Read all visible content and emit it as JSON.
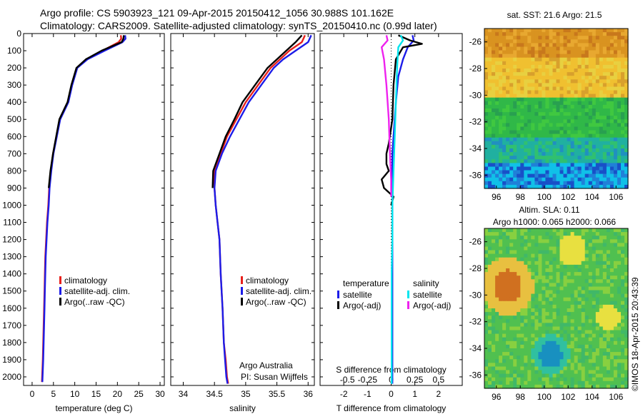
{
  "title_line1": "Argo profile: CS 5903923_121 09-Apr-2015 20150412_1056 30.988S 101.162E",
  "title_line2": "Climatology: CARS2009. Satellite-adjusted climatology: synTS_20150410.nc (0.99d later)",
  "sst_title": "sat. SST: 21.6 Argo: 21.5",
  "sla_title1": "Altim. SLA: 0.11",
  "sla_title2": "Argo h1000: 0.065 h2000: 0.066",
  "credit": "Argo Australia",
  "pi": "PI: Susan Wijffels",
  "watermark": "©IMOS 18-Apr-2015 20:43:39",
  "chart_data": [
    {
      "type": "line",
      "panel": "temperature",
      "xlabel": "temperature (deg C)",
      "xlim": [
        -2,
        31
      ],
      "ylim": [
        0,
        2050
      ],
      "y_reversed": true,
      "xticks": [
        0,
        5,
        10,
        15,
        20,
        25,
        30
      ],
      "yticks": [
        0,
        100,
        200,
        300,
        400,
        500,
        600,
        700,
        800,
        900,
        1000,
        1100,
        1200,
        1300,
        1400,
        1500,
        1600,
        1700,
        1800,
        1900,
        2000
      ],
      "legend": [
        "climatology",
        "satellite-adj. clim.",
        "Argo(..raw -QC)"
      ],
      "series": [
        {
          "name": "climatology",
          "color": "#e8201c",
          "x": [
            20.8,
            20.9,
            20.3,
            16.5,
            12.8,
            10.5,
            9.3,
            8.4,
            6.5,
            4.9,
            4.4,
            4.0,
            3.8,
            3.5,
            3.3,
            3.1,
            3.0,
            2.9,
            2.8,
            2.7,
            2.6,
            2.5,
            2.3
          ],
          "y": [
            10,
            30,
            50,
            100,
            150,
            200,
            300,
            400,
            500,
            700,
            800,
            900,
            1000,
            1100,
            1200,
            1300,
            1400,
            1500,
            1600,
            1700,
            1800,
            1900,
            2030
          ]
        },
        {
          "name": "satellite-adj. clim.",
          "color": "#1c1ce8",
          "x": [
            21.8,
            21.9,
            21.2,
            17.0,
            13.0,
            10.6,
            9.4,
            8.5,
            6.6,
            5.0,
            4.5,
            4.1,
            3.9,
            3.6,
            3.4,
            3.2,
            3.1,
            3.0,
            2.9,
            2.8,
            2.7,
            2.6,
            2.4
          ],
          "y": [
            10,
            30,
            50,
            100,
            150,
            200,
            300,
            400,
            500,
            700,
            800,
            900,
            1000,
            1100,
            1200,
            1300,
            1400,
            1500,
            1600,
            1700,
            1800,
            1900,
            2030
          ]
        },
        {
          "name": "Argo(..raw -QC)",
          "color": "#000000",
          "x": [
            21.5,
            21.4,
            21.0,
            16.3,
            12.6,
            10.4,
            9.2,
            8.3,
            6.4,
            4.9,
            4.3,
            3.9
          ],
          "y": [
            10,
            30,
            50,
            100,
            150,
            200,
            300,
            400,
            500,
            700,
            800,
            900
          ]
        }
      ]
    },
    {
      "type": "line",
      "panel": "salinity",
      "xlabel": "salinity",
      "xlim": [
        33.8,
        36.1
      ],
      "ylim": [
        0,
        2050
      ],
      "y_reversed": true,
      "xticks": [
        34,
        34.5,
        35,
        35.5,
        36
      ],
      "legend": [
        "climatology",
        "satellite-adj. clim.",
        "Argo(..raw -QC)"
      ],
      "series": [
        {
          "name": "climatology",
          "color": "#e8201c",
          "x": [
            35.95,
            35.9,
            35.7,
            35.55,
            35.4,
            35.2,
            35.0,
            34.85,
            34.7,
            34.6,
            34.5,
            34.5,
            34.52,
            34.55,
            34.58,
            34.6,
            34.63,
            34.65,
            34.68,
            34.7,
            34.72
          ],
          "y": [
            10,
            50,
            100,
            150,
            200,
            300,
            400,
            500,
            600,
            700,
            800,
            900,
            1000,
            1100,
            1200,
            1400,
            1600,
            1800,
            1900,
            2000,
            2040
          ]
        },
        {
          "name": "satellite-adj. clim.",
          "color": "#1c1ce8",
          "x": [
            36.05,
            36.0,
            35.8,
            35.6,
            35.45,
            35.25,
            35.05,
            34.9,
            34.75,
            34.62,
            34.52,
            34.5,
            34.52,
            34.55,
            34.58,
            34.6,
            34.63,
            34.65,
            34.67,
            34.69,
            34.71
          ],
          "y": [
            10,
            50,
            100,
            150,
            200,
            300,
            400,
            500,
            600,
            700,
            800,
            900,
            1000,
            1100,
            1200,
            1400,
            1600,
            1800,
            1900,
            2000,
            2040
          ]
        },
        {
          "name": "Argo(..raw -QC)",
          "color": "#000000",
          "x": [
            35.9,
            35.8,
            35.65,
            35.5,
            35.35,
            35.15,
            34.95,
            34.82,
            34.68,
            34.58,
            34.48,
            34.47
          ],
          "y": [
            10,
            50,
            100,
            150,
            200,
            300,
            400,
            500,
            600,
            700,
            800,
            900
          ]
        }
      ]
    },
    {
      "type": "line",
      "panel": "difference",
      "xlabel": "T difference from climatology",
      "xlabel_top": "S difference from climatology",
      "xlim": [
        -3,
        3
      ],
      "ylim": [
        0,
        2050
      ],
      "y_reversed": true,
      "xticks": [
        -2,
        -1,
        0,
        1,
        2
      ],
      "s_ticks": [
        "-0.5",
        "-0.25",
        "0",
        "0.25",
        "0.5"
      ],
      "legend_groups": [
        {
          "title": "temperature",
          "items": [
            "satellite",
            "Argo(-adj)"
          ]
        },
        {
          "title": "salinity",
          "items": [
            "satellite",
            "Argo(-adj)"
          ]
        }
      ],
      "series": [
        {
          "name": "temperature satellite",
          "color": "#1c1ce8",
          "x": [
            0.9,
            0.95,
            0.7,
            0.5,
            0.3,
            0.2,
            0.15,
            0.1,
            0.05,
            0.05,
            0.05,
            0.05,
            0.05,
            0.05,
            0.05,
            0.05,
            0.05
          ],
          "y": [
            10,
            40,
            80,
            150,
            250,
            400,
            500,
            600,
            700,
            800,
            900,
            1000,
            1200,
            1400,
            1600,
            1800,
            2040
          ]
        },
        {
          "name": "temperature Argo(-adj)",
          "color": "#000000",
          "x": [
            0.3,
            0.8,
            1.3,
            0.5,
            0.2,
            0.1,
            0.05,
            -0.1,
            -0.2,
            -0.2,
            -0.1,
            -0.4,
            -0.3,
            0.1,
            0.0
          ],
          "y": [
            10,
            40,
            60,
            80,
            150,
            300,
            500,
            640,
            700,
            760,
            800,
            850,
            900,
            950,
            1000
          ]
        },
        {
          "name": "salinity satellite",
          "color": "#00e5ee",
          "x": [
            0.4,
            0.5,
            0.3,
            0.25,
            0.2,
            0.15,
            0.1,
            0.05,
            0.05,
            0.02,
            0.02,
            0.02
          ],
          "y": [
            10,
            40,
            80,
            200,
            400,
            600,
            800,
            1000,
            1200,
            1400,
            1600,
            2040
          ]
        },
        {
          "name": "salinity Argo(-adj)",
          "color": "#ee22ee",
          "x": [
            -0.2,
            -0.15,
            -0.4,
            -0.3,
            -0.2,
            -0.1,
            -0.05,
            0.0,
            0.0
          ],
          "y": [
            10,
            40,
            80,
            150,
            300,
            500,
            700,
            850,
            950
          ]
        }
      ]
    },
    {
      "type": "heatmap",
      "panel": "sat-sst-map",
      "title": "sat. SST: 21.6 Argo: 21.5",
      "xticks": [
        96,
        98,
        100,
        102,
        104,
        106
      ],
      "yticks": [
        -26,
        -28,
        -30,
        -32,
        -34,
        -36
      ],
      "xlim": [
        95,
        107
      ],
      "ylim": [
        -37,
        -25
      ]
    },
    {
      "type": "heatmap",
      "panel": "sla-map",
      "xticks": [
        96,
        98,
        100,
        102,
        104,
        106
      ],
      "yticks": [
        -26,
        -28,
        -30,
        -32,
        -34,
        -36
      ],
      "xlim": [
        95,
        107
      ],
      "ylim": [
        -37,
        -25
      ]
    }
  ]
}
